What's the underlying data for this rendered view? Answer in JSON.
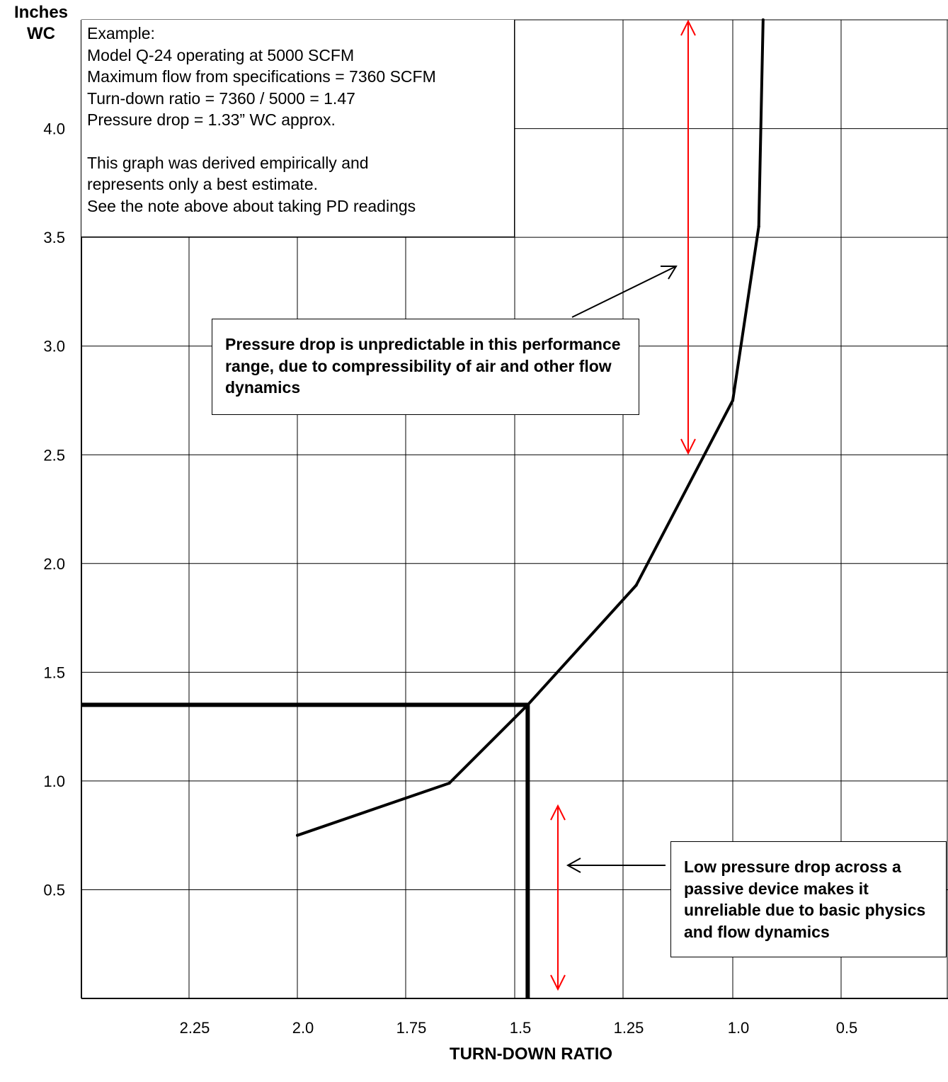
{
  "chart_data": {
    "type": "line",
    "ylabel_lines": [
      "Inches",
      "WC"
    ],
    "xlabel": "TURN-DOWN RATIO",
    "x_ticks": [
      "2.25",
      "2.0",
      "1.75",
      "1.5",
      "1.25",
      "1.0",
      "0.5"
    ],
    "y_ticks": [
      "0.5",
      "1.0",
      "1.5",
      "2.0",
      "2.5",
      "3.0",
      "3.5",
      "4.0"
    ],
    "y_tick_values": [
      0.5,
      1.0,
      1.5,
      2.0,
      2.5,
      3.0,
      3.5,
      4.0
    ],
    "ylim": [
      0,
      4.5
    ],
    "x_scale_note": "x axis decreases left to right; tick positions are evenly spaced categories",
    "grid": true,
    "series": [
      {
        "points": [
          {
            "x": "2.0",
            "y": 0.75
          },
          {
            "x": "1.65",
            "y": 0.99
          },
          {
            "x": "1.47",
            "y": 1.35
          },
          {
            "x": "1.22",
            "y": 1.9
          },
          {
            "x": "1.0",
            "y": 2.75
          },
          {
            "x": "0.88",
            "y": 3.55
          },
          {
            "x": "0.86",
            "y": 4.5
          }
        ]
      }
    ],
    "example_line": {
      "x": 1.47,
      "y": 1.33
    },
    "color": "#000000",
    "range_arrow_color": "#ff0000"
  },
  "example_box": {
    "lines": [
      "Example:",
      "Model Q-24 operating at 5000 SCFM",
      "Maximum flow from specifications = 7360 SCFM",
      "Turn-down ratio = 7360 / 5000 = 1.47",
      "Pressure drop = 1.33” WC approx."
    ],
    "note_lines": [
      "This graph was derived empirically and",
      "represents only a best estimate.",
      "See the note above about taking PD readings"
    ]
  },
  "callout_top": "Pressure drop is unpredictable in this performance range, due to compressibility of air and other flow dynamics",
  "callout_bottom": "Low pressure drop across a passive device makes it unreliable due to basic physics and flow dynamics"
}
